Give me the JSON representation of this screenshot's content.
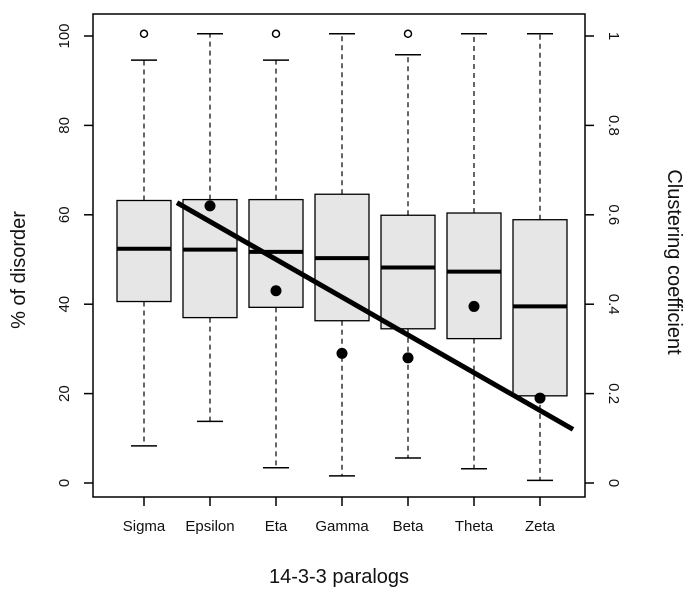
{
  "chart_data": {
    "type": "box",
    "xlabel": "14-3-3  paralogs",
    "ylabel_left": "%  of  disorder",
    "ylabel_right": "Clustering  coefficient",
    "categories": [
      "Sigma",
      "Epsilon",
      "Eta",
      "Gamma",
      "Beta",
      "Theta",
      "Zeta"
    ],
    "ylim_left": [
      0,
      100
    ],
    "yticks_left": [
      "0",
      "20",
      "40",
      "60",
      "80",
      "100"
    ],
    "ylim_right": [
      0,
      1
    ],
    "yticks_right": [
      "0",
      "0.2",
      "0.4",
      "0.6",
      "0.8",
      "1"
    ],
    "boxes": [
      {
        "name": "Sigma",
        "whisker_low": 8.3,
        "q1": 40.6,
        "median": 52.4,
        "q3": 63.2,
        "whisker_high": 94.6,
        "outliers": [
          100.5
        ]
      },
      {
        "name": "Epsilon",
        "whisker_low": 13.8,
        "q1": 37.0,
        "median": 52.2,
        "q3": 63.4,
        "whisker_high": 100.5,
        "outliers": []
      },
      {
        "name": "Eta",
        "whisker_low": 3.4,
        "q1": 39.3,
        "median": 51.7,
        "q3": 63.4,
        "whisker_high": 94.6,
        "outliers": [
          100.5
        ]
      },
      {
        "name": "Gamma",
        "whisker_low": 1.6,
        "q1": 36.3,
        "median": 50.3,
        "q3": 64.6,
        "whisker_high": 100.5,
        "outliers": []
      },
      {
        "name": "Beta",
        "whisker_low": 5.6,
        "q1": 34.5,
        "median": 48.2,
        "q3": 59.9,
        "whisker_high": 95.8,
        "outliers": [
          100.5
        ]
      },
      {
        "name": "Theta",
        "whisker_low": 3.2,
        "q1": 32.3,
        "median": 47.3,
        "q3": 60.4,
        "whisker_high": 100.5,
        "outliers": []
      },
      {
        "name": "Zeta",
        "whisker_low": 0.6,
        "q1": 19.5,
        "median": 39.5,
        "q3": 58.9,
        "whisker_high": 100.5,
        "outliers": []
      }
    ],
    "clustering_coefficient": [
      {
        "name": "Epsilon",
        "value": 0.62
      },
      {
        "name": "Eta",
        "value": 0.43
      },
      {
        "name": "Gamma",
        "value": 0.29
      },
      {
        "name": "Beta",
        "value": 0.28
      },
      {
        "name": "Theta",
        "value": 0.395
      },
      {
        "name": "Zeta",
        "value": 0.19
      }
    ],
    "trend_line": {
      "x_start": 1.5,
      "y_start": 62.7,
      "x_end": 7.5,
      "y_end": 12.0
    },
    "colors": {
      "box_fill": "#e6e6e6",
      "stroke": "#000000",
      "background": "#ffffff"
    }
  }
}
